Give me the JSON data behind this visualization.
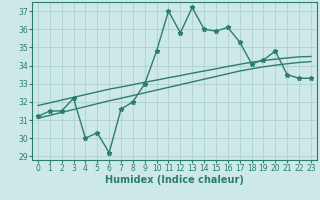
{
  "x": [
    0,
    1,
    2,
    3,
    4,
    5,
    6,
    7,
    8,
    9,
    10,
    11,
    12,
    13,
    14,
    15,
    16,
    17,
    18,
    19,
    20,
    21,
    22,
    23
  ],
  "y_main": [
    31.2,
    31.5,
    31.5,
    32.2,
    30.0,
    30.3,
    29.2,
    31.6,
    32.0,
    33.0,
    34.8,
    37.0,
    35.8,
    37.2,
    36.0,
    35.9,
    36.1,
    35.3,
    34.1,
    34.3,
    34.8,
    33.5,
    33.3,
    33.3
  ],
  "y_trend1": [
    31.8,
    31.95,
    32.1,
    32.25,
    32.4,
    32.55,
    32.7,
    32.82,
    32.95,
    33.08,
    33.2,
    33.33,
    33.45,
    33.58,
    33.7,
    33.82,
    33.95,
    34.07,
    34.18,
    34.28,
    34.35,
    34.42,
    34.48,
    34.5
  ],
  "y_trend2": [
    31.1,
    31.26,
    31.42,
    31.58,
    31.74,
    31.9,
    32.06,
    32.2,
    32.35,
    32.5,
    32.65,
    32.8,
    32.95,
    33.1,
    33.25,
    33.4,
    33.55,
    33.7,
    33.82,
    33.93,
    34.02,
    34.1,
    34.17,
    34.22
  ],
  "line_color": "#2d7d6e",
  "bg_color": "#cce8e8",
  "grid_color": "#aacccc",
  "xlabel": "Humidex (Indice chaleur)",
  "ylim": [
    28.8,
    37.5
  ],
  "xlim": [
    -0.5,
    23.5
  ],
  "yticks": [
    29,
    30,
    31,
    32,
    33,
    34,
    35,
    36,
    37
  ],
  "xticks": [
    0,
    1,
    2,
    3,
    4,
    5,
    6,
    7,
    8,
    9,
    10,
    11,
    12,
    13,
    14,
    15,
    16,
    17,
    18,
    19,
    20,
    21,
    22,
    23
  ],
  "marker_size": 3.5,
  "linewidth": 1.0,
  "tick_fontsize": 5.5,
  "label_fontsize": 7
}
